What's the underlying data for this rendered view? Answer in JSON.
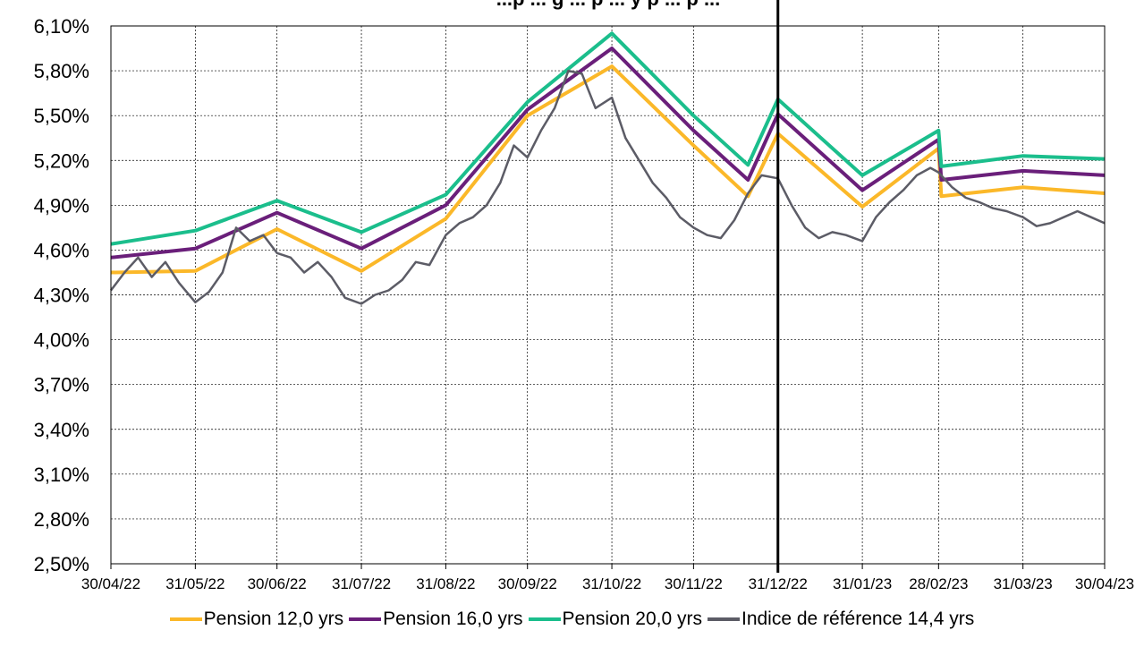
{
  "chart_data": {
    "type": "line",
    "title": "...p ... g ... p ... y p ... p ...",
    "y_ticks": [
      "2,50%",
      "2,80%",
      "3,10%",
      "3,40%",
      "3,70%",
      "4,00%",
      "4,30%",
      "4,60%",
      "4,90%",
      "5,20%",
      "5,50%",
      "5,80%",
      "6,10%"
    ],
    "x_ticks": [
      "30/04/22",
      "31/05/22",
      "30/06/22",
      "31/07/22",
      "31/08/22",
      "30/09/22",
      "31/10/22",
      "30/11/22",
      "31/12/22",
      "31/01/23",
      "28/02/23",
      "31/03/23",
      "30/04/23"
    ],
    "ylim": [
      2.5,
      6.1
    ],
    "grid": true,
    "legend_position": "bottom",
    "markers": [
      {
        "x": "31/12/22"
      }
    ],
    "series": [
      {
        "name": "Pension 12,0 yrs",
        "color": "#FBB829",
        "points": [
          [
            "30/04/22",
            4.45
          ],
          [
            "31/05/22",
            4.46
          ],
          [
            "30/06/22",
            4.74
          ],
          [
            "31/07/22",
            4.46
          ],
          [
            "31/08/22",
            4.81
          ],
          [
            "30/09/22",
            5.5
          ],
          [
            "31/10/22",
            5.83
          ],
          [
            "30/11/22",
            5.3
          ],
          [
            "20/12/22",
            4.96
          ],
          [
            "31/12/22",
            5.38
          ],
          [
            "31/01/23",
            4.89
          ],
          [
            "28/02/23",
            5.28
          ],
          [
            "01/03/23",
            4.96
          ],
          [
            "31/03/23",
            5.02
          ],
          [
            "30/04/23",
            4.98
          ]
        ]
      },
      {
        "name": "Pension 16,0 yrs",
        "color": "#6A1F7A",
        "points": [
          [
            "30/04/22",
            4.55
          ],
          [
            "31/05/22",
            4.61
          ],
          [
            "30/06/22",
            4.85
          ],
          [
            "31/07/22",
            4.61
          ],
          [
            "31/08/22",
            4.9
          ],
          [
            "30/09/22",
            5.54
          ],
          [
            "31/10/22",
            5.95
          ],
          [
            "30/11/22",
            5.4
          ],
          [
            "20/12/22",
            5.07
          ],
          [
            "31/12/22",
            5.51
          ],
          [
            "31/01/23",
            5.0
          ],
          [
            "28/02/23",
            5.34
          ],
          [
            "01/03/23",
            5.07
          ],
          [
            "31/03/23",
            5.13
          ],
          [
            "30/04/23",
            5.1
          ]
        ]
      },
      {
        "name": "Pension 20,0 yrs",
        "color": "#1BBE8C",
        "points": [
          [
            "30/04/22",
            4.64
          ],
          [
            "31/05/22",
            4.73
          ],
          [
            "30/06/22",
            4.93
          ],
          [
            "31/07/22",
            4.72
          ],
          [
            "31/08/22",
            4.97
          ],
          [
            "30/09/22",
            5.59
          ],
          [
            "31/10/22",
            6.05
          ],
          [
            "30/11/22",
            5.5
          ],
          [
            "20/12/22",
            5.17
          ],
          [
            "31/12/22",
            5.61
          ],
          [
            "31/01/23",
            5.1
          ],
          [
            "28/02/23",
            5.4
          ],
          [
            "01/03/23",
            5.16
          ],
          [
            "31/03/23",
            5.23
          ],
          [
            "30/04/23",
            5.21
          ]
        ]
      },
      {
        "name": "Indice de référence 14,4 yrs",
        "color": "#5C5C66",
        "points": [
          [
            "30/04/22",
            4.33
          ],
          [
            "05/05/22",
            4.45
          ],
          [
            "10/05/22",
            4.55
          ],
          [
            "15/05/22",
            4.42
          ],
          [
            "20/05/22",
            4.52
          ],
          [
            "25/05/22",
            4.38
          ],
          [
            "31/05/22",
            4.25
          ],
          [
            "05/06/22",
            4.32
          ],
          [
            "10/06/22",
            4.45
          ],
          [
            "15/06/22",
            4.75
          ],
          [
            "20/06/22",
            4.66
          ],
          [
            "25/06/22",
            4.7
          ],
          [
            "30/06/22",
            4.58
          ],
          [
            "05/07/22",
            4.55
          ],
          [
            "10/07/22",
            4.45
          ],
          [
            "15/07/22",
            4.52
          ],
          [
            "20/07/22",
            4.42
          ],
          [
            "25/07/22",
            4.28
          ],
          [
            "31/07/22",
            4.24
          ],
          [
            "05/08/22",
            4.3
          ],
          [
            "10/08/22",
            4.33
          ],
          [
            "15/08/22",
            4.4
          ],
          [
            "20/08/22",
            4.52
          ],
          [
            "25/08/22",
            4.5
          ],
          [
            "31/08/22",
            4.7
          ],
          [
            "05/09/22",
            4.78
          ],
          [
            "10/09/22",
            4.82
          ],
          [
            "15/09/22",
            4.9
          ],
          [
            "20/09/22",
            5.05
          ],
          [
            "25/09/22",
            5.3
          ],
          [
            "30/09/22",
            5.22
          ],
          [
            "05/10/22",
            5.4
          ],
          [
            "10/10/22",
            5.55
          ],
          [
            "15/10/22",
            5.8
          ],
          [
            "20/10/22",
            5.78
          ],
          [
            "25/10/22",
            5.55
          ],
          [
            "31/10/22",
            5.62
          ],
          [
            "05/11/22",
            5.35
          ],
          [
            "10/11/22",
            5.2
          ],
          [
            "15/11/22",
            5.05
          ],
          [
            "20/11/22",
            4.95
          ],
          [
            "25/11/22",
            4.82
          ],
          [
            "30/11/22",
            4.75
          ],
          [
            "05/12/22",
            4.7
          ],
          [
            "10/12/22",
            4.68
          ],
          [
            "15/12/22",
            4.8
          ],
          [
            "20/12/22",
            4.98
          ],
          [
            "25/12/22",
            5.1
          ],
          [
            "31/12/22",
            5.08
          ],
          [
            "05/01/23",
            4.9
          ],
          [
            "10/01/23",
            4.75
          ],
          [
            "15/01/23",
            4.68
          ],
          [
            "20/01/23",
            4.72
          ],
          [
            "25/01/23",
            4.7
          ],
          [
            "31/01/23",
            4.66
          ],
          [
            "05/02/23",
            4.82
          ],
          [
            "10/02/23",
            4.92
          ],
          [
            "15/02/23",
            5.0
          ],
          [
            "20/02/23",
            5.1
          ],
          [
            "25/02/23",
            5.15
          ],
          [
            "28/02/23",
            5.12
          ],
          [
            "05/03/23",
            5.02
          ],
          [
            "10/03/23",
            4.95
          ],
          [
            "15/03/23",
            4.92
          ],
          [
            "20/03/23",
            4.88
          ],
          [
            "25/03/23",
            4.86
          ],
          [
            "31/03/23",
            4.82
          ],
          [
            "05/04/23",
            4.76
          ],
          [
            "10/04/23",
            4.78
          ],
          [
            "15/04/23",
            4.82
          ],
          [
            "20/04/23",
            4.86
          ],
          [
            "25/04/23",
            4.82
          ],
          [
            "30/04/23",
            4.78
          ]
        ]
      }
    ]
  }
}
